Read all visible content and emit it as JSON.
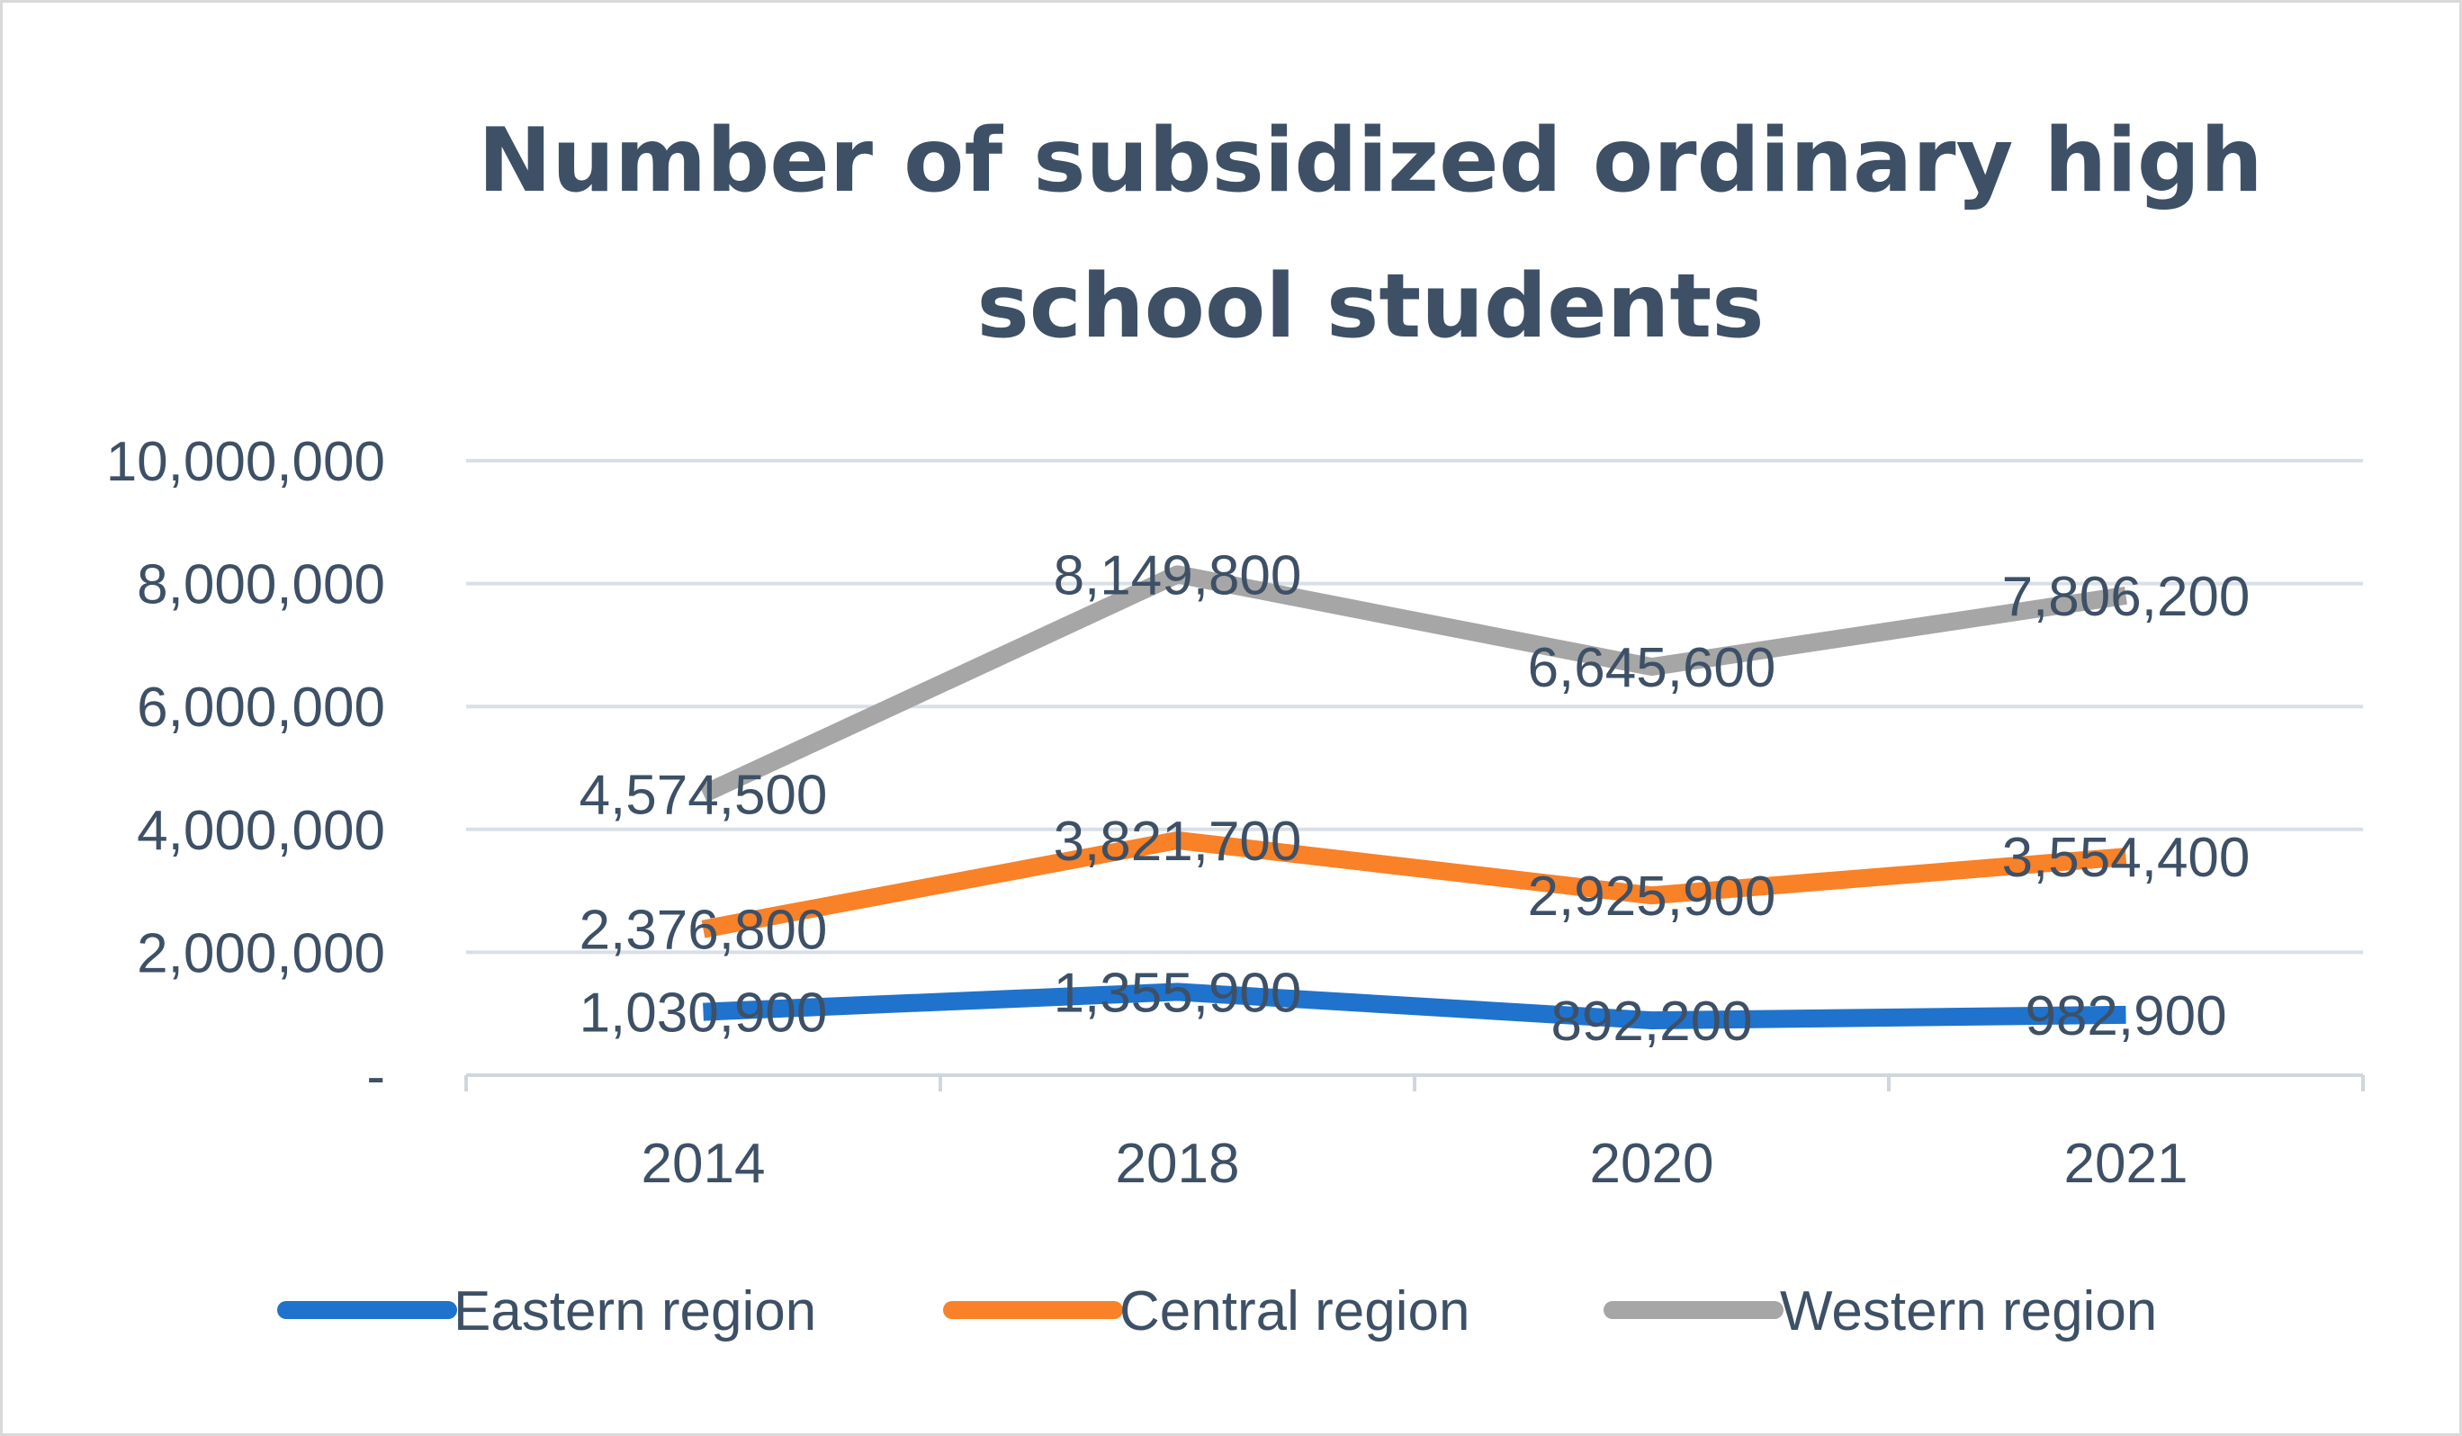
{
  "chart_data": {
    "type": "line",
    "title_lines": [
      "Number of subsidized ordinary high",
      "school students"
    ],
    "categories": [
      "2014",
      "2018",
      "2020",
      "2021"
    ],
    "series": [
      {
        "name": "Eastern region",
        "color": "#1f73cc",
        "values": [
          1030900,
          1355900,
          892200,
          982900
        ],
        "labels": [
          "1,030,900",
          "1,355,900",
          "892,200",
          "982,900"
        ]
      },
      {
        "name": "Central region",
        "color": "#f98128",
        "values": [
          2376800,
          3821700,
          2925900,
          3554400
        ],
        "labels": [
          "2,376,800",
          "3,821,700",
          "2,925,900",
          "3,554,400"
        ]
      },
      {
        "name": "Western region",
        "color": "#a6a6a6",
        "values": [
          4574500,
          8149800,
          6645600,
          7806200
        ],
        "labels": [
          "4,574,500",
          "8,149,800",
          "6,645,600",
          "7,806,200"
        ]
      }
    ],
    "ylim": [
      0,
      10000000
    ],
    "yticks": [
      0,
      2000000,
      4000000,
      6000000,
      8000000,
      10000000
    ],
    "ytick_labels": [
      "-",
      "2,000,000",
      "4,000,000",
      "6,000,000",
      "8,000,000",
      "10,000,000"
    ],
    "grid": true,
    "legend_position": "bottom",
    "xlabel": "",
    "ylabel": ""
  }
}
